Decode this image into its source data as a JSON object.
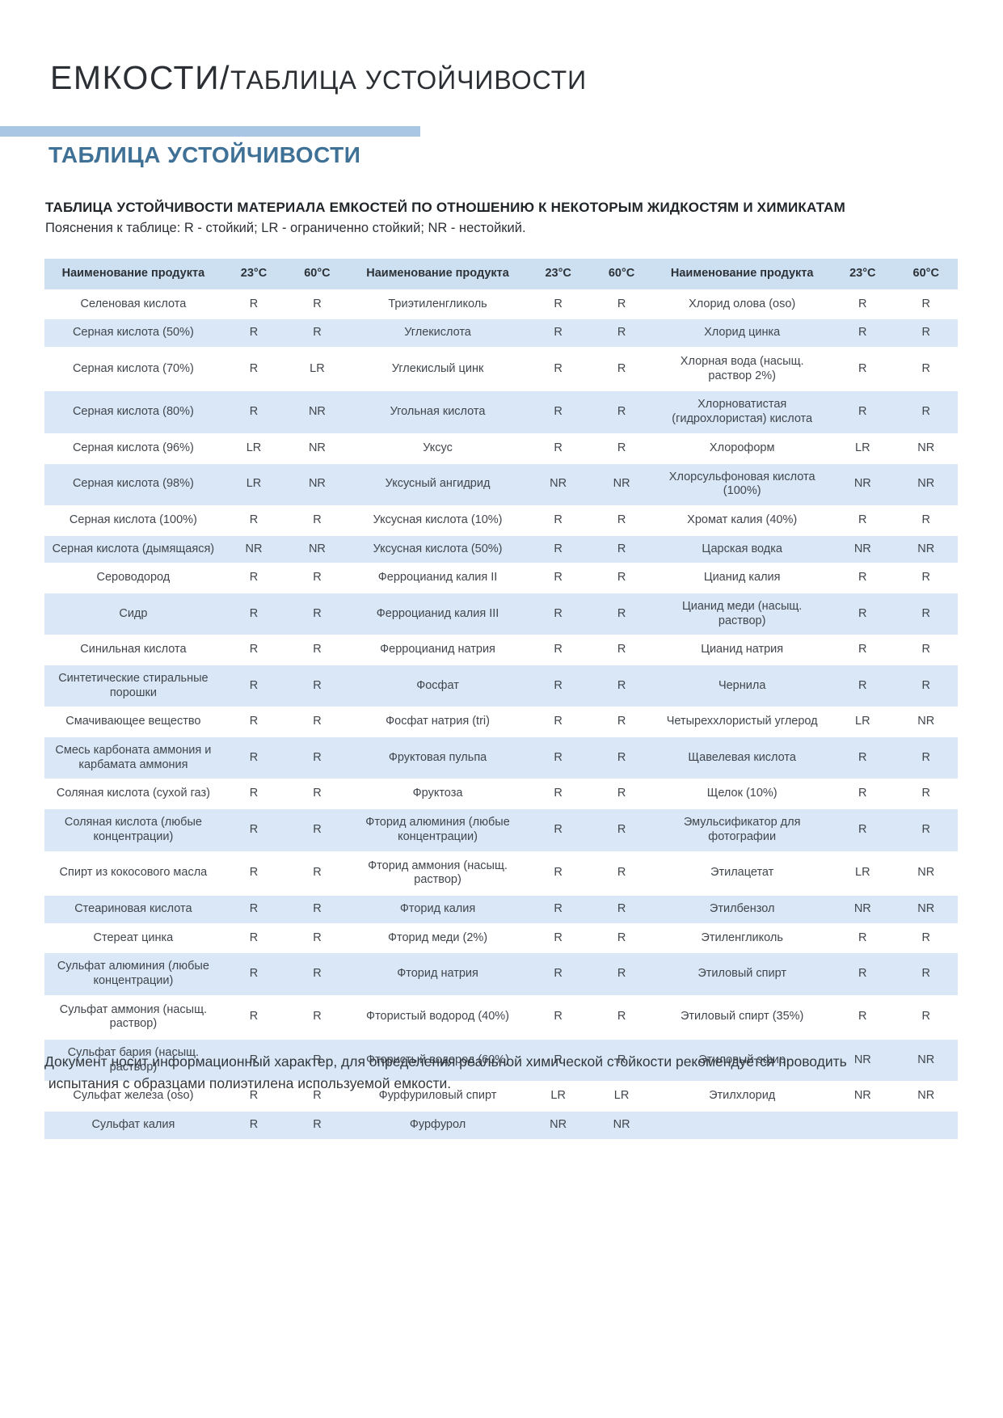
{
  "page": {
    "title_primary": "ЕМКОСТИ/",
    "title_secondary": "ТАБЛИЦА УСТОЙЧИВОСТИ",
    "section_heading": "ТАБЛИЦА УСТОЙЧИВОСТИ",
    "table_title": "ТАБЛИЦА УСТОЙЧИВОСТИ МАТЕРИАЛА ЕМКОСТЕЙ ПО ОТНОШЕНИЮ К НЕКОТОРЫМ ЖИДКОСТЯМ И ХИМИКАТАМ",
    "legend": "Пояснения к таблице: R - стойкий; LR - ограниченно стойкий; NR - нестойкий.",
    "footer_line1": "Документ носит информационный характер, для определения реальной химической стойкости рекомендуется проводить",
    "footer_line2": " испытания с образцами полиэтилена используемой емкости."
  },
  "colors": {
    "accent_band": "#a9c7e5",
    "section_heading": "#3f7096",
    "table_header_bg": "#cde0f2",
    "row_stripe_bg": "#d9e7f6"
  },
  "table": {
    "column_headers": [
      "Наименование продукта",
      "23°C",
      "60°C"
    ],
    "rows": [
      [
        "Селеновая кислота",
        "R",
        "R",
        "Триэтиленгликоль",
        "R",
        "R",
        "Хлорид олова (oso)",
        "R",
        "R"
      ],
      [
        "Серная кислота (50%)",
        "R",
        "R",
        "Углекислота",
        "R",
        "R",
        "Хлорид цинка",
        "R",
        "R"
      ],
      [
        "Серная кислота (70%)",
        "R",
        "LR",
        "Углекислый цинк",
        "R",
        "R",
        "Хлорная вода (насыщ. раствор 2%)",
        "R",
        "R"
      ],
      [
        "Серная кислота (80%)",
        "R",
        "NR",
        "Угольная кислота",
        "R",
        "R",
        "Хлорноватистая (гидрохлористая) кислота",
        "R",
        "R"
      ],
      [
        "Серная кислота (96%)",
        "LR",
        "NR",
        "Уксус",
        "R",
        "R",
        "Хлороформ",
        "LR",
        "NR"
      ],
      [
        "Серная кислота (98%)",
        "LR",
        "NR",
        "Уксусный ангидрид",
        "NR",
        "NR",
        "Хлорсульфоновая кислота (100%)",
        "NR",
        "NR"
      ],
      [
        "Серная кислота (100%)",
        "R",
        "R",
        "Уксусная кислота (10%)",
        "R",
        "R",
        "Хромат калия (40%)",
        "R",
        "R"
      ],
      [
        "Серная кислота (дымящаяся)",
        "NR",
        "NR",
        "Уксусная кислота (50%)",
        "R",
        "R",
        "Царская водка",
        "NR",
        "NR"
      ],
      [
        "Сероводород",
        "R",
        "R",
        "Ферроцианид калия II",
        "R",
        "R",
        "Цианид калия",
        "R",
        "R"
      ],
      [
        "Сидр",
        "R",
        "R",
        "Ферроцианид калия III",
        "R",
        "R",
        "Цианид меди (насыщ. раствор)",
        "R",
        "R"
      ],
      [
        "Синильная кислота",
        "R",
        "R",
        "Ферроцианид натрия",
        "R",
        "R",
        "Цианид натрия",
        "R",
        "R"
      ],
      [
        "Синтетические стиральные порошки",
        "R",
        "R",
        "Фосфат",
        "R",
        "R",
        "Чернила",
        "R",
        "R"
      ],
      [
        "Смачивающее вещество",
        "R",
        "R",
        "Фосфат натрия (tri)",
        "R",
        "R",
        "Четыреххлористый углерод",
        "LR",
        "NR"
      ],
      [
        "Смесь карбоната аммония и карбамата аммония",
        "R",
        "R",
        "Фруктовая пульпа",
        "R",
        "R",
        "Щавелевая кислота",
        "R",
        "R"
      ],
      [
        "Соляная кислота (сухой газ)",
        "R",
        "R",
        "Фруктоза",
        "R",
        "R",
        "Щелок (10%)",
        "R",
        "R"
      ],
      [
        "Соляная кислота (любые концентрации)",
        "R",
        "R",
        "Фторид алюминия (любые концентрации)",
        "R",
        "R",
        "Эмульсификатор для фотографии",
        "R",
        "R"
      ],
      [
        "Спирт из кокосового масла",
        "R",
        "R",
        "Фторид аммония (насыщ. раствор)",
        "R",
        "R",
        "Этилацетат",
        "LR",
        "NR"
      ],
      [
        "Стеариновая кислота",
        "R",
        "R",
        "Фторид калия",
        "R",
        "R",
        "Этилбензол",
        "NR",
        "NR"
      ],
      [
        "Стереат цинка",
        "R",
        "R",
        "Фторид меди (2%)",
        "R",
        "R",
        "Этиленгликоль",
        "R",
        "R"
      ],
      [
        "Сульфат алюминия (любые концентрации)",
        "R",
        "R",
        "Фторид натрия",
        "R",
        "R",
        "Этиловый спирт",
        "R",
        "R"
      ],
      [
        "Сульфат аммония (насыщ. раствор)",
        "R",
        "R",
        "Фтористый водород (40%)",
        "R",
        "R",
        "Этиловый спирт (35%)",
        "R",
        "R"
      ],
      [
        "Сульфат бария (насыщ. раствор)",
        "R",
        "R",
        "Фтористый водород (60%)",
        "R",
        "R",
        "Этиловый эфир",
        "NR",
        "NR"
      ],
      [
        "Сульфат железа (oso)",
        "R",
        "R",
        "Фурфуриловый спирт",
        "LR",
        "LR",
        "Этилхлорид",
        "NR",
        "NR"
      ],
      [
        "Сульфат калия",
        "R",
        "R",
        "Фурфурол",
        "NR",
        "NR",
        "",
        "",
        ""
      ]
    ]
  }
}
